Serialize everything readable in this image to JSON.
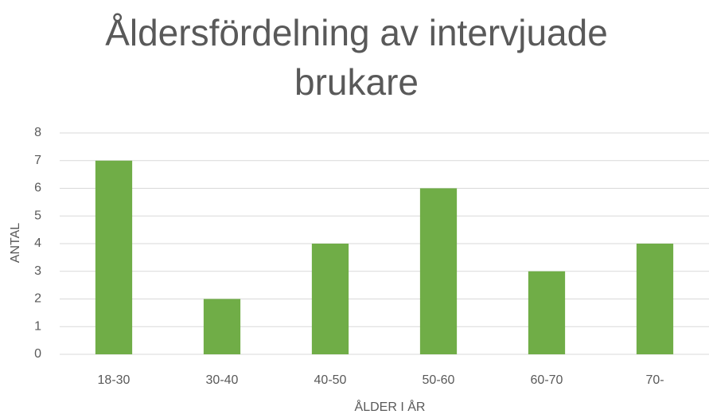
{
  "chart_data": {
    "type": "bar",
    "title": "Åldersfördelning av intervjuade brukare",
    "x_label": "ÅLDER I ÅR",
    "y_label": "ANTAL",
    "categories": [
      "18-30",
      "30-40",
      "40-50",
      "50-60",
      "60-70",
      "70-"
    ],
    "values": [
      7,
      2,
      4,
      6,
      3,
      4
    ],
    "color": "#70ad47",
    "ylim": [
      0,
      8
    ],
    "yticks": [
      0,
      1,
      2,
      3,
      4,
      5,
      6,
      7,
      8
    ],
    "grid": true
  }
}
